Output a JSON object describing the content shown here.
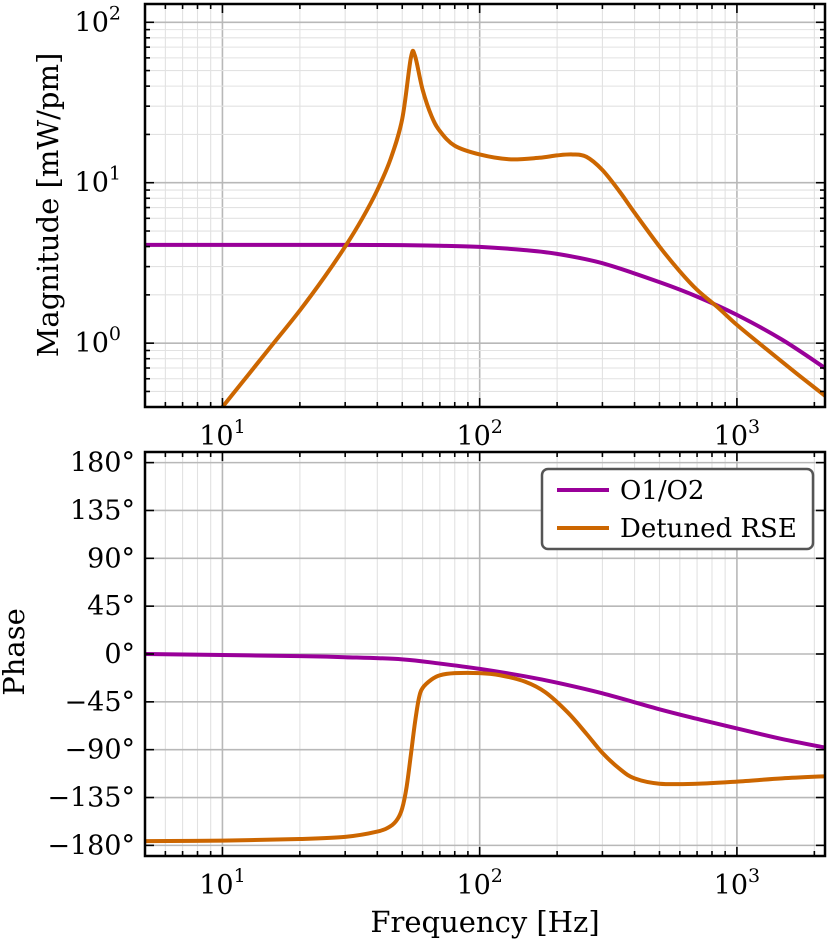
{
  "chart_data": [
    {
      "type": "line",
      "panel": "magnitude",
      "xscale": "log",
      "yscale": "log",
      "xlim": [
        5,
        2200
      ],
      "ylim": [
        0.4,
        130
      ],
      "xticks": [
        10,
        100,
        1000
      ],
      "xtick_labels": [
        {
          "base": "10",
          "exp": "1"
        },
        {
          "base": "10",
          "exp": "2"
        },
        {
          "base": "10",
          "exp": "3"
        }
      ],
      "yticks": [
        1,
        10,
        100
      ],
      "ytick_labels": [
        {
          "base": "10",
          "exp": "0"
        },
        {
          "base": "10",
          "exp": "1"
        },
        {
          "base": "10",
          "exp": "2"
        }
      ],
      "ylabel": "Magnitude [mW/pm]",
      "xlabel": "",
      "grid": true,
      "series": [
        {
          "name": "O1/O2",
          "color": "#990099",
          "x": [
            5,
            10,
            20,
            30,
            50,
            70,
            100,
            150,
            200,
            300,
            500,
            700,
            1000,
            1500,
            2200
          ],
          "y": [
            4.1,
            4.1,
            4.1,
            4.1,
            4.08,
            4.05,
            3.98,
            3.8,
            3.6,
            3.15,
            2.4,
            1.95,
            1.5,
            1.05,
            0.7
          ]
        },
        {
          "name": "Detuned RSE",
          "color": "#CC6600",
          "x": [
            10,
            15,
            20,
            25,
            30,
            35,
            40,
            45,
            50,
            54,
            56,
            60,
            65,
            70,
            80,
            100,
            130,
            170,
            200,
            230,
            260,
            300,
            350,
            400,
            500,
            600,
            700,
            850,
            1000,
            1300,
            1700,
            2200
          ],
          "y": [
            0.4,
            0.9,
            1.6,
            2.6,
            4.0,
            6.0,
            9.0,
            14.0,
            25.0,
            60.0,
            62.0,
            38.0,
            26.0,
            21.0,
            17.0,
            15.0,
            14.0,
            14.3,
            14.8,
            15.0,
            14.5,
            12.0,
            8.8,
            6.5,
            4.0,
            2.8,
            2.15,
            1.65,
            1.3,
            0.92,
            0.65,
            0.47
          ]
        }
      ]
    },
    {
      "type": "line",
      "panel": "phase",
      "xscale": "log",
      "yscale": "linear",
      "xlim": [
        5,
        2200
      ],
      "ylim": [
        -190,
        190
      ],
      "xticks": [
        10,
        100,
        1000
      ],
      "xtick_labels": [
        {
          "base": "10",
          "exp": "1"
        },
        {
          "base": "10",
          "exp": "2"
        },
        {
          "base": "10",
          "exp": "3"
        }
      ],
      "yticks": [
        180,
        135,
        90,
        45,
        0,
        -45,
        -90,
        -135,
        -180
      ],
      "ytick_labels": [
        "180°",
        "135°",
        "90°",
        "45°",
        "0°",
        "−45°",
        "−90°",
        "−135°",
        "−180°"
      ],
      "ylabel": "Phase",
      "xlabel": "Frequency [Hz]",
      "grid": true,
      "legend": {
        "position": "top-right",
        "entries": [
          "O1/O2",
          "Detuned RSE"
        ]
      },
      "series": [
        {
          "name": "O1/O2",
          "color": "#990099",
          "x": [
            5,
            10,
            20,
            30,
            50,
            70,
            100,
            150,
            200,
            300,
            500,
            700,
            1000,
            1500,
            2200
          ],
          "y": [
            0,
            -1,
            -2,
            -3,
            -5,
            -9,
            -14,
            -21,
            -27,
            -37,
            -52,
            -61,
            -70,
            -80,
            -88
          ]
        },
        {
          "name": "Detuned RSE",
          "color": "#CC6600",
          "x": [
            5,
            10,
            20,
            30,
            40,
            45,
            48,
            50,
            52,
            54,
            56,
            58,
            60,
            65,
            70,
            80,
            100,
            120,
            150,
            180,
            220,
            260,
            300,
            350,
            400,
            500,
            700,
            1000,
            1500,
            2200
          ],
          "y": [
            -176,
            -175.5,
            -174,
            -172,
            -167,
            -162,
            -155,
            -145,
            -125,
            -95,
            -65,
            -42,
            -32,
            -24,
            -20,
            -18,
            -18,
            -20,
            -26,
            -36,
            -55,
            -75,
            -93,
            -108,
            -117,
            -122,
            -122,
            -120,
            -117,
            -115
          ]
        }
      ]
    }
  ]
}
